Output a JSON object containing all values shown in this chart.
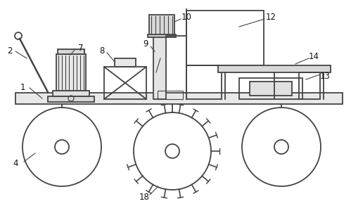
{
  "bg_color": "#ffffff",
  "line_color": "#444444",
  "line_width": 1.3,
  "figsize": [
    4.99,
    3.03
  ],
  "dpi": 100,
  "label_fontsize": 8.5
}
